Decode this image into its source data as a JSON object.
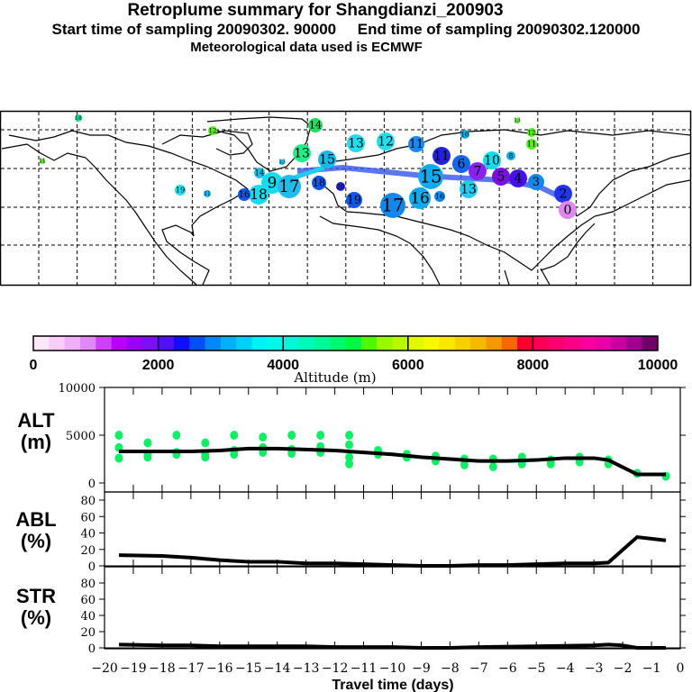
{
  "title": "Retroplume summary for Shangdianzi_200903",
  "subtitle": "Start time of sampling 20090302. 90000     End time of sampling 20090302.120000",
  "met_data": "Meteorological data used is ECMWF",
  "map": {
    "markers": [
      {
        "label": "18",
        "color": "#1ee890"
      },
      {
        "label": "14",
        "color": "#22dd55"
      },
      {
        "label": "12",
        "color": "#55ee22"
      },
      {
        "label": "11",
        "color": "#55ee22"
      },
      {
        "label": "13",
        "color": "#22ee88"
      },
      {
        "label": "13",
        "color": "#22ddee"
      },
      {
        "label": "12",
        "color": "#22ddee"
      },
      {
        "label": "11",
        "color": "#1e88ee"
      },
      {
        "label": "10",
        "color": "#11aadd"
      },
      {
        "label": "15",
        "color": "#11bbee"
      },
      {
        "label": "13",
        "color": "#11bbee"
      },
      {
        "label": "14",
        "color": "#22bbee"
      },
      {
        "label": "18",
        "color": "#11ddee"
      },
      {
        "label": "9",
        "color": "#11ddee"
      },
      {
        "label": "17",
        "color": "#22bbee"
      },
      {
        "label": "16",
        "color": "#1155ee"
      },
      {
        "label": "11",
        "color": "#22bbee"
      },
      {
        "label": "19",
        "color": "#22ddee"
      },
      {
        "label": "18",
        "color": "#1155ee"
      },
      {
        "label": "20",
        "color": "#2222dd"
      },
      {
        "label": "19",
        "color": "#1155ee"
      },
      {
        "label": "17",
        "color": "#1188ee"
      },
      {
        "label": "16",
        "color": "#11aaee"
      },
      {
        "label": "15",
        "color": "#11aaee"
      },
      {
        "label": "16",
        "color": "#1188ee"
      },
      {
        "label": "11",
        "color": "#2222dd"
      },
      {
        "label": "6",
        "color": "#1166ee"
      },
      {
        "label": "7",
        "color": "#8822ee"
      },
      {
        "label": "10",
        "color": "#11ddee"
      },
      {
        "label": "13",
        "color": "#22ccee"
      },
      {
        "label": "5",
        "color": "#7711dd"
      },
      {
        "label": "4",
        "color": "#4411ee"
      },
      {
        "label": "3",
        "color": "#1188ee"
      },
      {
        "label": "2",
        "color": "#2233ee"
      },
      {
        "label": "0",
        "color": "#dd88ee"
      },
      {
        "label": "8",
        "color": "#11aaee"
      },
      {
        "label": "13",
        "color": "#55ee22"
      },
      {
        "label": "12",
        "color": "#55ee22"
      },
      {
        "label": "11",
        "color": "#55ee22"
      }
    ]
  },
  "colorbar": {
    "label": "Altitude (m)",
    "ticks": [
      "0",
      "2000",
      "4000",
      "6000",
      "8000",
      "10000"
    ],
    "colors": [
      "#fde8f8",
      "#f9ccf9",
      "#f0b0f8",
      "#e088f8",
      "#d040f8",
      "#b800f8",
      "#9a00f8",
      "#7a10f8",
      "#5010f8",
      "#1010f8",
      "#0050f8",
      "#0088f8",
      "#00b0f8",
      "#00d0f8",
      "#00f0f8",
      "#00f8e8",
      "#00f8d8",
      "#00f8b8",
      "#00f898",
      "#00f870",
      "#00f840",
      "#50f800",
      "#98f800",
      "#b8f800",
      "#e0f800",
      "#f8f800",
      "#f8e800",
      "#f8d000",
      "#f8b800",
      "#f89800",
      "#f86800",
      "#f80030",
      "#f80058",
      "#f80070",
      "#f80088",
      "#f800a0",
      "#e800a8",
      "#c800a0",
      "#a00090",
      "#700068"
    ]
  },
  "chart_data": [
    {
      "type": "line",
      "name": "ALT",
      "ylabel": "ALT",
      "yunit": "(m)",
      "ylim": [
        0,
        10000
      ],
      "yticks": [
        "0",
        "5000",
        "10000"
      ],
      "x": [
        -19.5,
        -17,
        -16,
        -15,
        -14,
        -13,
        -12,
        -11,
        -10,
        -9,
        -8,
        -7,
        -6,
        -5,
        -4,
        -3,
        -2.5,
        -1.5,
        -0.5
      ],
      "values": [
        3300,
        3300,
        3400,
        3600,
        3600,
        3500,
        3400,
        3200,
        3000,
        2700,
        2500,
        2300,
        2300,
        2400,
        2600,
        2600,
        2400,
        900,
        900
      ],
      "scatter_color": "#11ee66",
      "scatter": [
        [
          -19.5,
          3700
        ],
        [
          -19.5,
          2600
        ],
        [
          -19.5,
          5000
        ],
        [
          -18.5,
          3000
        ],
        [
          -18.5,
          2700
        ],
        [
          -18.5,
          4200
        ],
        [
          -17.5,
          3200
        ],
        [
          -17.5,
          3000
        ],
        [
          -17.5,
          5000
        ],
        [
          -16.5,
          4200
        ],
        [
          -16.5,
          3000
        ],
        [
          -16.5,
          2700
        ],
        [
          -15.5,
          3400
        ],
        [
          -15.5,
          3000
        ],
        [
          -15.5,
          5000
        ],
        [
          -14.5,
          3700
        ],
        [
          -14.5,
          3200
        ],
        [
          -14.5,
          4800
        ],
        [
          -13.5,
          3500
        ],
        [
          -13.5,
          3100
        ],
        [
          -13.5,
          5000
        ],
        [
          -12.5,
          3800
        ],
        [
          -12.5,
          3200
        ],
        [
          -12.5,
          5000
        ],
        [
          -11.5,
          4000
        ],
        [
          -11.5,
          2700
        ],
        [
          -11.5,
          2000
        ],
        [
          -11.5,
          5000
        ],
        [
          -10.5,
          3400
        ],
        [
          -10.5,
          3000
        ],
        [
          -9.5,
          3000
        ],
        [
          -9.5,
          2700
        ],
        [
          -8.5,
          2800
        ],
        [
          -8.5,
          2300
        ],
        [
          -7.5,
          2500
        ],
        [
          -7.5,
          1900
        ],
        [
          -6.5,
          2500
        ],
        [
          -6.5,
          1700
        ],
        [
          -5.5,
          2700
        ],
        [
          -5.5,
          2000
        ],
        [
          -4.5,
          2400
        ],
        [
          -4.5,
          2000
        ],
        [
          -3.5,
          2700
        ],
        [
          -3.5,
          2200
        ],
        [
          -2.5,
          2400
        ],
        [
          -2.5,
          2000
        ],
        [
          -1.5,
          1000
        ],
        [
          -0.5,
          700
        ]
      ]
    },
    {
      "type": "line",
      "name": "ABL",
      "ylabel": "ABL",
      "yunit": "(%)",
      "ylim": [
        0,
        90
      ],
      "yticks": [
        "0",
        "20",
        "40",
        "60",
        "80"
      ],
      "x": [
        -19.5,
        -18,
        -17,
        -16,
        -15,
        -14,
        -13,
        -12,
        -11,
        -10,
        -9,
        -8,
        -7,
        -6,
        -5,
        -4,
        -3,
        -2.5,
        -1.5,
        -0.5
      ],
      "values": [
        13,
        12,
        10,
        7,
        5,
        5,
        3,
        3,
        2,
        1,
        0,
        0,
        1,
        1,
        2,
        3,
        3,
        4,
        35,
        31
      ]
    },
    {
      "type": "line",
      "name": "STR",
      "ylabel": "STR",
      "yunit": "(%)",
      "ylim": [
        0,
        100
      ],
      "yticks": [
        "0",
        "20",
        "40",
        "60",
        "80"
      ],
      "x": [
        -19.5,
        -18,
        -17,
        -16,
        -15,
        -13,
        -12,
        -10,
        -9,
        -8,
        -7,
        -5,
        -3,
        -2.5,
        -2,
        -1.5,
        -0.5
      ],
      "values": [
        4,
        3,
        3,
        2,
        2,
        2,
        1,
        1,
        0,
        0,
        1,
        2,
        3,
        4,
        3,
        0,
        0
      ],
      "xlabel": "Travel time (days)",
      "xticks": [
        "-20",
        "-19",
        "-18",
        "-17",
        "-16",
        "-15",
        "-14",
        "-13",
        "-12",
        "-11",
        "-10",
        "-9",
        "-8",
        "-7",
        "-6",
        "-5",
        "-4",
        "-3",
        "-2",
        "-1",
        "0"
      ],
      "xlim": [
        -20,
        0
      ]
    }
  ]
}
